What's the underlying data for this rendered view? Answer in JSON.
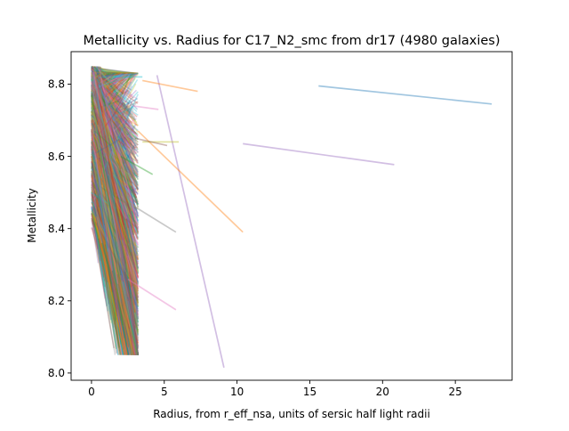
{
  "chart_data": {
    "type": "line",
    "title": "Metallicity vs. Radius for C17_N2_smc from dr17 (4980 galaxies)",
    "xlabel": "Radius, from r_eff_nsa, units of sersic half light radii",
    "ylabel": "Metallicity",
    "xlim": [
      -1.4,
      28.9
    ],
    "ylim": [
      7.98,
      8.89
    ],
    "xticks": [
      0,
      5,
      10,
      15,
      20,
      25
    ],
    "yticks": [
      8.0,
      8.2,
      8.4,
      8.6,
      8.8
    ],
    "xtick_labels": [
      "0",
      "5",
      "10",
      "15",
      "20",
      "25"
    ],
    "ytick_labels": [
      "8.0",
      "8.2",
      "8.4",
      "8.6",
      "8.8"
    ],
    "grid": false,
    "line_alpha": 0.3,
    "palette": [
      "#1f77b4",
      "#ff7f0e",
      "#2ca02c",
      "#d62728",
      "#9467bd",
      "#8c564b",
      "#e377c2",
      "#7f7f7f",
      "#bcbd22",
      "#17becf"
    ],
    "notable_series": [
      {
        "x": [
          15.6,
          27.5
        ],
        "y": [
          8.795,
          8.745
        ],
        "color": "#1f77b4"
      },
      {
        "x": [
          10.4,
          20.8
        ],
        "y": [
          8.635,
          8.577
        ],
        "color": "#9467bd"
      },
      {
        "x": [
          4.5,
          9.1
        ],
        "y": [
          8.825,
          8.015
        ],
        "color": "#9467bd"
      },
      {
        "x": [
          3.2,
          10.4
        ],
        "y": [
          8.67,
          8.39
        ],
        "color": "#ff7f0e"
      },
      {
        "x": [
          3.5,
          7.3
        ],
        "y": [
          8.81,
          8.78
        ],
        "color": "#ff7f0e"
      },
      {
        "x": [
          2.5,
          5.8
        ],
        "y": [
          8.26,
          8.175
        ],
        "color": "#e377c2"
      },
      {
        "x": [
          3.0,
          5.8
        ],
        "y": [
          8.46,
          8.39
        ],
        "color": "#7f7f7f"
      },
      {
        "x": [
          3.5,
          6.0
        ],
        "y": [
          8.64,
          8.64
        ],
        "color": "#bcbd22"
      },
      {
        "x": [
          3.0,
          5.2
        ],
        "y": [
          8.65,
          8.63
        ],
        "color": "#8c564b"
      },
      {
        "x": [
          2.8,
          4.6
        ],
        "y": [
          8.74,
          8.73
        ],
        "color": "#e377c2"
      },
      {
        "x": [
          2.0,
          4.2
        ],
        "y": [
          8.6,
          8.55
        ],
        "color": "#2ca02c"
      },
      {
        "x": [
          1.5,
          3.5
        ],
        "y": [
          8.82,
          8.82
        ],
        "color": "#17becf"
      }
    ],
    "dense_cluster": {
      "count": 4960,
      "x_start_range": [
        0.0,
        0.6
      ],
      "x_end_range": [
        0.4,
        3.2
      ],
      "y_start_range": [
        8.4,
        8.85
      ],
      "y_end_range": [
        8.05,
        8.83
      ],
      "typical_slope": -0.12
    }
  }
}
